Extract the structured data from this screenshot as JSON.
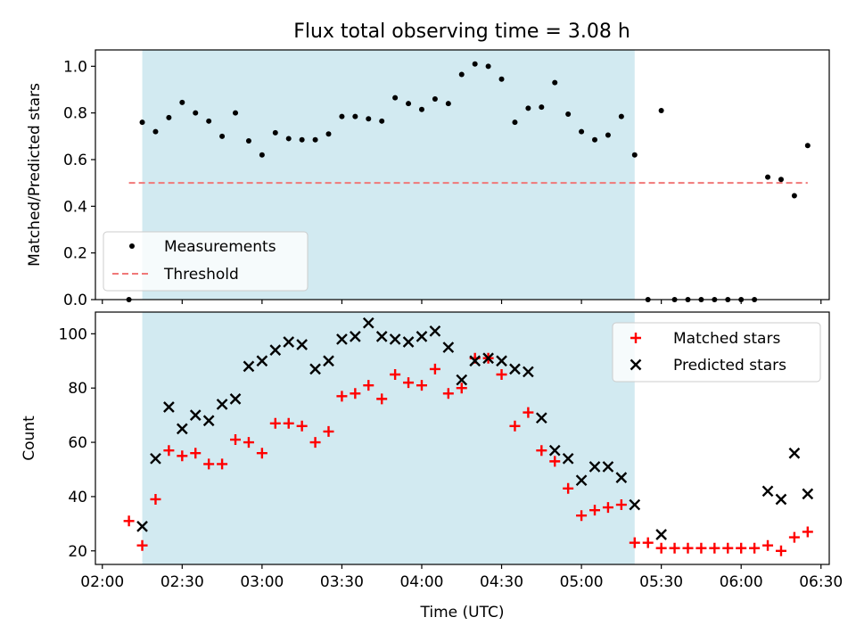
{
  "figure": {
    "title": "Flux total observing time = 3.08 h"
  },
  "chart_data": [
    {
      "type": "scatter",
      "ylabel": "Matched/Predicted stars",
      "xlim": [
        "02:00",
        "06:30"
      ],
      "ylim": [
        0,
        1.07
      ],
      "yticks": [
        "0.0",
        "0.2",
        "0.4",
        "0.6",
        "0.8",
        "1.0"
      ],
      "shaded_interval": {
        "start": "02:15",
        "end": "05:20",
        "color": "#add8e6"
      },
      "threshold": {
        "value": 0.5,
        "x_start": "02:10",
        "x_end": "06:25",
        "color": "#f07878"
      },
      "legend": {
        "placement": "lower-left",
        "entries": [
          {
            "label": "Measurements",
            "marker": "dot",
            "color": "#000000"
          },
          {
            "label": "Threshold",
            "marker": "dashed-line",
            "color": "#f07878"
          }
        ]
      },
      "series": [
        {
          "name": "Measurements",
          "points": [
            [
              "02:10",
              0.0
            ],
            [
              "02:15",
              0.76
            ],
            [
              "02:20",
              0.72
            ],
            [
              "02:25",
              0.78
            ],
            [
              "02:30",
              0.845
            ],
            [
              "02:35",
              0.8
            ],
            [
              "02:40",
              0.765
            ],
            [
              "02:45",
              0.7
            ],
            [
              "02:50",
              0.8
            ],
            [
              "02:55",
              0.68
            ],
            [
              "03:00",
              0.62
            ],
            [
              "03:05",
              0.715
            ],
            [
              "03:10",
              0.69
            ],
            [
              "03:15",
              0.685
            ],
            [
              "03:20",
              0.685
            ],
            [
              "03:25",
              0.71
            ],
            [
              "03:30",
              0.785
            ],
            [
              "03:35",
              0.785
            ],
            [
              "03:40",
              0.775
            ],
            [
              "03:45",
              0.765
            ],
            [
              "03:50",
              0.865
            ],
            [
              "03:55",
              0.84
            ],
            [
              "04:00",
              0.815
            ],
            [
              "04:05",
              0.86
            ],
            [
              "04:10",
              0.84
            ],
            [
              "04:15",
              0.965
            ],
            [
              "04:20",
              1.01
            ],
            [
              "04:25",
              1.0
            ],
            [
              "04:30",
              0.945
            ],
            [
              "04:35",
              0.76
            ],
            [
              "04:40",
              0.82
            ],
            [
              "04:45",
              0.825
            ],
            [
              "04:50",
              0.93
            ],
            [
              "04:55",
              0.795
            ],
            [
              "05:00",
              0.72
            ],
            [
              "05:05",
              0.685
            ],
            [
              "05:10",
              0.705
            ],
            [
              "05:15",
              0.785
            ],
            [
              "05:20",
              0.62
            ],
            [
              "05:25",
              0.0
            ],
            [
              "05:30",
              0.81
            ],
            [
              "05:35",
              0.0
            ],
            [
              "05:40",
              0.0
            ],
            [
              "05:45",
              0.0
            ],
            [
              "05:50",
              0.0
            ],
            [
              "05:55",
              0.0
            ],
            [
              "06:00",
              0.0
            ],
            [
              "06:05",
              0.0
            ],
            [
              "06:10",
              0.525
            ],
            [
              "06:15",
              0.515
            ],
            [
              "06:20",
              0.445
            ],
            [
              "06:25",
              0.66
            ]
          ]
        }
      ]
    },
    {
      "type": "scatter",
      "xlabel": "Time (UTC)",
      "ylabel": "Count",
      "xlim": [
        "02:00",
        "06:30"
      ],
      "xticks": [
        "02:00",
        "02:30",
        "03:00",
        "03:30",
        "04:00",
        "04:30",
        "05:00",
        "05:30",
        "06:00",
        "06:30"
      ],
      "ylim": [
        15,
        108
      ],
      "yticks": [
        "20",
        "40",
        "60",
        "80",
        "100"
      ],
      "shaded_interval": {
        "start": "02:15",
        "end": "05:20",
        "color": "#add8e6"
      },
      "legend": {
        "placement": "upper-right",
        "entries": [
          {
            "label": "Matched stars",
            "marker": "plus",
            "color": "#ff0000"
          },
          {
            "label": "Predicted stars",
            "marker": "x",
            "color": "#000000"
          }
        ]
      },
      "series": [
        {
          "name": "Matched stars",
          "marker": "plus",
          "color": "#ff0000",
          "points": [
            [
              "02:10",
              31
            ],
            [
              "02:15",
              22
            ],
            [
              "02:20",
              39
            ],
            [
              "02:25",
              57
            ],
            [
              "02:30",
              55
            ],
            [
              "02:35",
              56
            ],
            [
              "02:40",
              52
            ],
            [
              "02:45",
              52
            ],
            [
              "02:50",
              61
            ],
            [
              "02:55",
              60
            ],
            [
              "03:00",
              56
            ],
            [
              "03:05",
              67
            ],
            [
              "03:10",
              67
            ],
            [
              "03:15",
              66
            ],
            [
              "03:20",
              60
            ],
            [
              "03:25",
              64
            ],
            [
              "03:30",
              77
            ],
            [
              "03:35",
              78
            ],
            [
              "03:40",
              81
            ],
            [
              "03:45",
              76
            ],
            [
              "03:50",
              85
            ],
            [
              "03:55",
              82
            ],
            [
              "04:00",
              81
            ],
            [
              "04:05",
              87
            ],
            [
              "04:10",
              78
            ],
            [
              "04:15",
              80
            ],
            [
              "04:20",
              91
            ],
            [
              "04:25",
              91
            ],
            [
              "04:30",
              85
            ],
            [
              "04:35",
              66
            ],
            [
              "04:40",
              71
            ],
            [
              "04:45",
              57
            ],
            [
              "04:50",
              53
            ],
            [
              "04:55",
              43
            ],
            [
              "05:00",
              33
            ],
            [
              "05:05",
              35
            ],
            [
              "05:10",
              36
            ],
            [
              "05:15",
              37
            ],
            [
              "05:20",
              23
            ],
            [
              "05:25",
              23
            ],
            [
              "05:30",
              21
            ],
            [
              "05:35",
              21
            ],
            [
              "05:40",
              21
            ],
            [
              "05:45",
              21
            ],
            [
              "05:50",
              21
            ],
            [
              "05:55",
              21
            ],
            [
              "06:00",
              21
            ],
            [
              "06:05",
              21
            ],
            [
              "06:10",
              22
            ],
            [
              "06:15",
              20
            ],
            [
              "06:20",
              25
            ],
            [
              "06:25",
              27
            ]
          ]
        },
        {
          "name": "Predicted stars",
          "marker": "x",
          "color": "#000000",
          "points": [
            [
              "02:15",
              29
            ],
            [
              "02:20",
              54
            ],
            [
              "02:25",
              73
            ],
            [
              "02:30",
              65
            ],
            [
              "02:35",
              70
            ],
            [
              "02:40",
              68
            ],
            [
              "02:45",
              74
            ],
            [
              "02:50",
              76
            ],
            [
              "02:55",
              88
            ],
            [
              "03:00",
              90
            ],
            [
              "03:05",
              94
            ],
            [
              "03:10",
              97
            ],
            [
              "03:15",
              96
            ],
            [
              "03:20",
              87
            ],
            [
              "03:25",
              90
            ],
            [
              "03:30",
              98
            ],
            [
              "03:35",
              99
            ],
            [
              "03:40",
              104
            ],
            [
              "03:45",
              99
            ],
            [
              "03:50",
              98
            ],
            [
              "03:55",
              97
            ],
            [
              "04:00",
              99
            ],
            [
              "04:05",
              101
            ],
            [
              "04:10",
              95
            ],
            [
              "04:15",
              83
            ],
            [
              "04:20",
              90
            ],
            [
              "04:25",
              91
            ],
            [
              "04:30",
              90
            ],
            [
              "04:35",
              87
            ],
            [
              "04:40",
              86
            ],
            [
              "04:45",
              69
            ],
            [
              "04:50",
              57
            ],
            [
              "04:55",
              54
            ],
            [
              "05:00",
              46
            ],
            [
              "05:05",
              51
            ],
            [
              "05:10",
              51
            ],
            [
              "05:15",
              47
            ],
            [
              "05:20",
              37
            ],
            [
              "05:30",
              26
            ],
            [
              "06:10",
              42
            ],
            [
              "06:15",
              39
            ],
            [
              "06:20",
              56
            ],
            [
              "06:25",
              41
            ]
          ]
        }
      ]
    }
  ]
}
